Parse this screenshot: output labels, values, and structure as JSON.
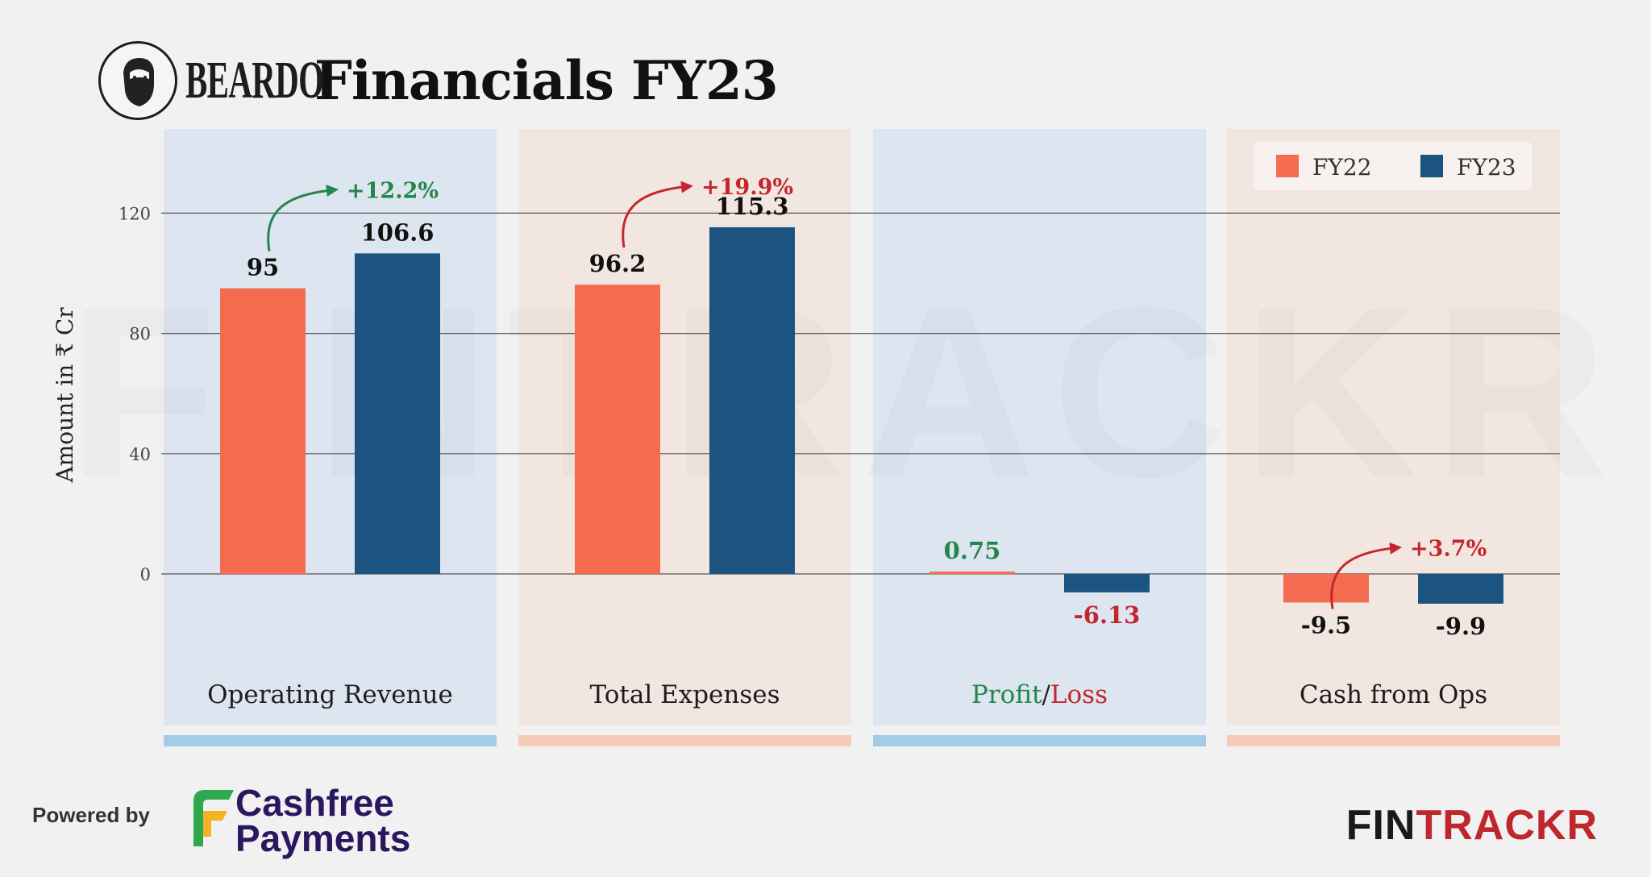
{
  "header": {
    "brand": "BEARDO",
    "title": "Financials FY23"
  },
  "watermark": "FINTRACKR",
  "chart_data": {
    "type": "bar",
    "ylabel": "Amount in ₹ Cr",
    "yticks": [
      0,
      40,
      80,
      120
    ],
    "ylim": [
      -30,
      130
    ],
    "legend": {
      "position": "top-right"
    },
    "series": [
      {
        "name": "FY22",
        "color": "#f46b50",
        "values": [
          95,
          96.2,
          0.75,
          -9.5
        ],
        "labels": [
          "95",
          "96.2",
          "0.75",
          "-9.5"
        ]
      },
      {
        "name": "FY23",
        "color": "#1b5480",
        "values": [
          106.6,
          115.3,
          -6.13,
          -9.9
        ],
        "labels": [
          "106.6",
          "115.3",
          "-6.13",
          "-9.9"
        ]
      }
    ],
    "groups": [
      {
        "label": "Operating Revenue",
        "change": "+12.2%",
        "change_color": "#23874b",
        "panel": "blue",
        "label_colors": [
          "#111111",
          "#111111"
        ]
      },
      {
        "label": "Total Expenses",
        "change": "+19.9%",
        "change_color": "#c4262c",
        "panel": "peach",
        "label_colors": [
          "#111111",
          "#111111"
        ]
      },
      {
        "label_parts": [
          "Profit",
          "/",
          "Loss"
        ],
        "label_part_colors": [
          "#23874b",
          "#222222",
          "#c4262c"
        ],
        "change": "",
        "panel": "blue",
        "label_colors": [
          "#23874b",
          "#c4262c"
        ]
      },
      {
        "label": "Cash from Ops",
        "change": "+3.7%",
        "change_color": "#c4262c",
        "panel": "peach",
        "label_colors": [
          "#111111",
          "#111111"
        ]
      }
    ],
    "panel_colors": {
      "blue": "#dce5f0",
      "peach": "#f2e6e1",
      "blue_strip": "#a3cde5",
      "peach_strip": "#f6cbb8"
    }
  },
  "footer": {
    "powered_by": "Powered by",
    "cashfree_line1": "Cashfree",
    "cashfree_line2": "Payments",
    "fintrackr_a": "FIN",
    "fintrackr_b": "TRACKR"
  }
}
